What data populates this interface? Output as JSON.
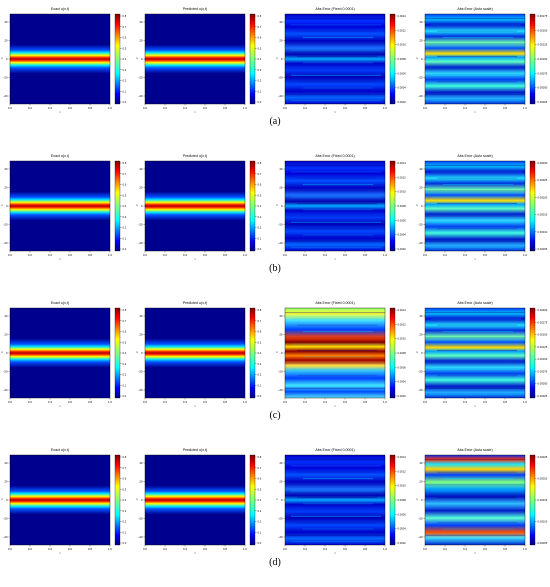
{
  "figure": {
    "rows": [
      {
        "label": "(a)",
        "panels": [
          {
            "title": "Exact u(x,t)",
            "kind": "solution",
            "cbar": [
              "0.8",
              "0.7",
              "0.6",
              "0.5",
              "0.4",
              "0.3",
              "0.2",
              "0.1",
              "0.0"
            ]
          },
          {
            "title": "Predicted u(x,t)",
            "kind": "solution",
            "cbar": [
              "0.8",
              "0.7",
              "0.6",
              "0.5",
              "0.4",
              "0.3",
              "0.2",
              "0.1",
              "0.0"
            ]
          },
          {
            "title": "Abs Error (Fixed 0.0001)",
            "kind": "error1",
            "cbar": [
              "0.0014",
              "0.0012",
              "0.0010",
              "0.0008",
              "0.0006",
              "0.0004",
              "0.0002"
            ]
          },
          {
            "title": "Abs Error (Auto scale)",
            "kind": "error2",
            "cbar": [
              "0.00175",
              "0.00150",
              "0.00125",
              "0.00100",
              "0.00075",
              "0.00050",
              "0.00025"
            ]
          }
        ]
      },
      {
        "label": "(b)",
        "panels": [
          {
            "title": "Exact u(x,t)",
            "kind": "solution",
            "cbar": [
              "0.8",
              "0.7",
              "0.6",
              "0.5",
              "0.4",
              "0.3",
              "0.2",
              "0.1",
              "0.0"
            ]
          },
          {
            "title": "Predicted u(x,t)",
            "kind": "solution",
            "cbar": [
              "0.8",
              "0.7",
              "0.6",
              "0.5",
              "0.4",
              "0.3",
              "0.2",
              "0.1",
              "0.0"
            ]
          },
          {
            "title": "Abs Error (Fixed 0.0001)",
            "kind": "error1",
            "cbar": [
              "0.0014",
              "0.0012",
              "0.0010",
              "0.0008",
              "0.0006",
              "0.0004",
              "0.0002"
            ]
          },
          {
            "title": "Abs Error (Auto scale)",
            "kind": "error2",
            "cbar": [
              "0.00030",
              "0.00025",
              "0.00020",
              "0.00015",
              "0.00010",
              "0.00005"
            ]
          }
        ]
      },
      {
        "label": "(c)",
        "panels": [
          {
            "title": "Exact u(x,t)",
            "kind": "solution",
            "cbar": [
              "0.8",
              "0.7",
              "0.6",
              "0.5",
              "0.4",
              "0.3",
              "0.2",
              "0.1",
              "0.0"
            ]
          },
          {
            "title": "Predicted u(x,t)",
            "kind": "solution",
            "cbar": [
              "0.8",
              "0.7",
              "0.6",
              "0.5",
              "0.4",
              "0.3",
              "0.2",
              "0.1",
              "0.0"
            ]
          },
          {
            "title": "Abs Error (Fixed 0.0001)",
            "kind": "error3",
            "cbar": [
              "0.0014",
              "0.0012",
              "0.0010",
              "0.0008",
              "0.0006",
              "0.0004",
              "0.0002"
            ]
          },
          {
            "title": "Abs Error (Auto scale)",
            "kind": "error2",
            "cbar": [
              "0.00200",
              "0.00175",
              "0.00150",
              "0.00125",
              "0.00100",
              "0.00075",
              "0.00050",
              "0.00025"
            ]
          }
        ]
      },
      {
        "label": "(d)",
        "panels": [
          {
            "title": "Exact u(x,t)",
            "kind": "solution",
            "cbar": [
              "0.8",
              "0.7",
              "0.6",
              "0.5",
              "0.4",
              "0.3",
              "0.2",
              "0.1",
              "0.0"
            ]
          },
          {
            "title": "Predicted u(x,t)",
            "kind": "solution",
            "cbar": [
              "0.8",
              "0.7",
              "0.6",
              "0.5",
              "0.4",
              "0.3",
              "0.2",
              "0.1",
              "0.0"
            ]
          },
          {
            "title": "Abs Error (Fixed 0.0001)",
            "kind": "error1",
            "cbar": [
              "0.0014",
              "0.0012",
              "0.0010",
              "0.0008",
              "0.0006",
              "0.0004",
              "0.0002"
            ]
          },
          {
            "title": "Abs Error (Auto scale)",
            "kind": "error4",
            "cbar": [
              "0.00025",
              "0.00020",
              "0.00015",
              "0.00010",
              "0.00005"
            ]
          }
        ]
      }
    ],
    "x_ticks": [
      "0.0",
      "0.2",
      "0.4",
      "0.6",
      "0.8",
      "1.0"
    ],
    "y_ticks": [
      "40",
      "20",
      "0",
      "−20",
      "−40"
    ],
    "x_label": "t",
    "y_label": "x"
  }
}
